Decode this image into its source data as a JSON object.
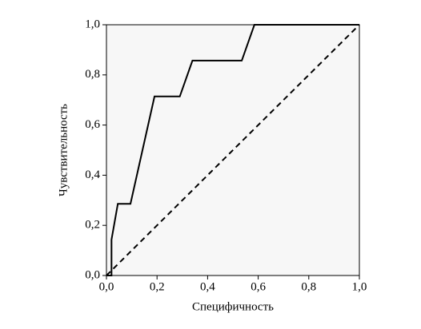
{
  "chart_data": {
    "type": "line",
    "xlabel": "Специфичность",
    "ylabel": "Чувствительность",
    "xlim": [
      0,
      1
    ],
    "ylim": [
      0,
      1
    ],
    "xticks": [
      {
        "value": 0,
        "label": "0,0"
      },
      {
        "value": 0.2,
        "label": "0,2"
      },
      {
        "value": 0.4,
        "label": "0,4"
      },
      {
        "value": 0.6,
        "label": "0,6"
      },
      {
        "value": 0.8,
        "label": "0,8"
      },
      {
        "value": 1,
        "label": "1,0"
      }
    ],
    "yticks": [
      {
        "value": 0,
        "label": "0,0"
      },
      {
        "value": 0.2,
        "label": "0,2"
      },
      {
        "value": 0.4,
        "label": "0,4"
      },
      {
        "value": 0.6,
        "label": "0,6"
      },
      {
        "value": 0.8,
        "label": "0,8"
      },
      {
        "value": 1,
        "label": "1,0"
      }
    ],
    "series": [
      {
        "color": "#000000",
        "dash": false,
        "x": [
          0,
          0.02,
          0.02,
          0.045,
          0.095,
          0.19,
          0.29,
          0.34,
          0.535,
          0.585,
          1.0
        ],
        "values": [
          0,
          0,
          0.143,
          0.286,
          0.286,
          0.714,
          0.714,
          0.857,
          0.857,
          1.0,
          1.0
        ]
      },
      {
        "color": "#000000",
        "dash": true,
        "x": [
          0,
          1
        ],
        "values": [
          0,
          1
        ]
      }
    ]
  }
}
